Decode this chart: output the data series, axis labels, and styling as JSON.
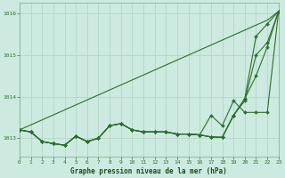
{
  "title": "Graphe pression niveau de la mer (hPa)",
  "background_color": "#cceae0",
  "grid_color": "#b8d8cc",
  "line_color": "#2d6e2d",
  "xlim": [
    0,
    23
  ],
  "ylim": [
    1012.55,
    1016.25
  ],
  "yticks": [
    1013,
    1014,
    1015,
    1016
  ],
  "xticks": [
    0,
    1,
    2,
    3,
    4,
    5,
    6,
    7,
    8,
    9,
    10,
    11,
    12,
    13,
    14,
    15,
    16,
    17,
    18,
    19,
    20,
    21,
    22,
    23
  ],
  "curves": [
    {
      "x": [
        0,
        1,
        2,
        3,
        4,
        5,
        6,
        7,
        8,
        9,
        10,
        11,
        12,
        13,
        14,
        15,
        16,
        17,
        18,
        19,
        20,
        21,
        22,
        23
      ],
      "y": [
        1013.2,
        1013.32,
        1013.44,
        1013.56,
        1013.68,
        1013.8,
        1013.92,
        1014.04,
        1014.16,
        1014.28,
        1014.4,
        1014.52,
        1014.64,
        1014.76,
        1014.88,
        1015.0,
        1015.12,
        1015.24,
        1015.36,
        1015.48,
        1015.6,
        1015.72,
        1015.84,
        1016.05
      ],
      "has_markers": false
    },
    {
      "x": [
        0,
        1,
        2,
        3,
        4,
        5,
        6,
        7,
        8,
        9,
        10,
        11,
        12,
        13,
        14,
        15,
        16,
        17,
        18,
        19,
        20,
        21,
        22,
        23
      ],
      "y": [
        1013.2,
        1013.15,
        1012.92,
        1012.87,
        1012.83,
        1013.05,
        1012.92,
        1013.0,
        1013.3,
        1013.35,
        1013.2,
        1013.15,
        1013.15,
        1013.15,
        1013.1,
        1013.1,
        1013.08,
        1013.03,
        1013.02,
        1013.55,
        1013.95,
        1015.45,
        1015.75,
        1016.05
      ],
      "has_markers": true
    },
    {
      "x": [
        0,
        1,
        2,
        3,
        4,
        5,
        6,
        7,
        8,
        9,
        10,
        11,
        12,
        13,
        14,
        15,
        16,
        17,
        18,
        19,
        20,
        21,
        22,
        23
      ],
      "y": [
        1013.2,
        1013.15,
        1012.92,
        1012.87,
        1012.83,
        1013.05,
        1012.92,
        1013.0,
        1013.3,
        1013.35,
        1013.2,
        1013.15,
        1013.15,
        1013.15,
        1013.1,
        1013.1,
        1013.08,
        1013.55,
        1013.3,
        1013.9,
        1013.62,
        1013.62,
        1013.62,
        1016.05
      ],
      "has_markers": true
    },
    {
      "x": [
        0,
        1,
        2,
        3,
        4,
        5,
        6,
        7,
        8,
        9,
        10,
        11,
        12,
        13,
        14,
        15,
        16,
        17,
        18,
        19,
        20,
        21,
        22,
        23
      ],
      "y": [
        1013.2,
        1013.15,
        1012.92,
        1012.87,
        1012.83,
        1013.05,
        1012.92,
        1013.0,
        1013.3,
        1013.35,
        1013.2,
        1013.15,
        1013.15,
        1013.15,
        1013.1,
        1013.1,
        1013.08,
        1013.03,
        1013.02,
        1013.55,
        1013.95,
        1014.5,
        1015.2,
        1016.05
      ],
      "has_markers": true
    },
    {
      "x": [
        0,
        1,
        2,
        3,
        4,
        5,
        6,
        7,
        8,
        9,
        10,
        11,
        12,
        13,
        14,
        15,
        16,
        17,
        18,
        19,
        20,
        21,
        22,
        23
      ],
      "y": [
        1013.2,
        1013.15,
        1012.92,
        1012.87,
        1012.83,
        1013.05,
        1012.92,
        1013.0,
        1013.3,
        1013.35,
        1013.2,
        1013.15,
        1013.15,
        1013.15,
        1013.1,
        1013.1,
        1013.08,
        1013.03,
        1013.02,
        1013.55,
        1013.9,
        1015.0,
        1015.3,
        1016.05
      ],
      "has_markers": true
    }
  ]
}
